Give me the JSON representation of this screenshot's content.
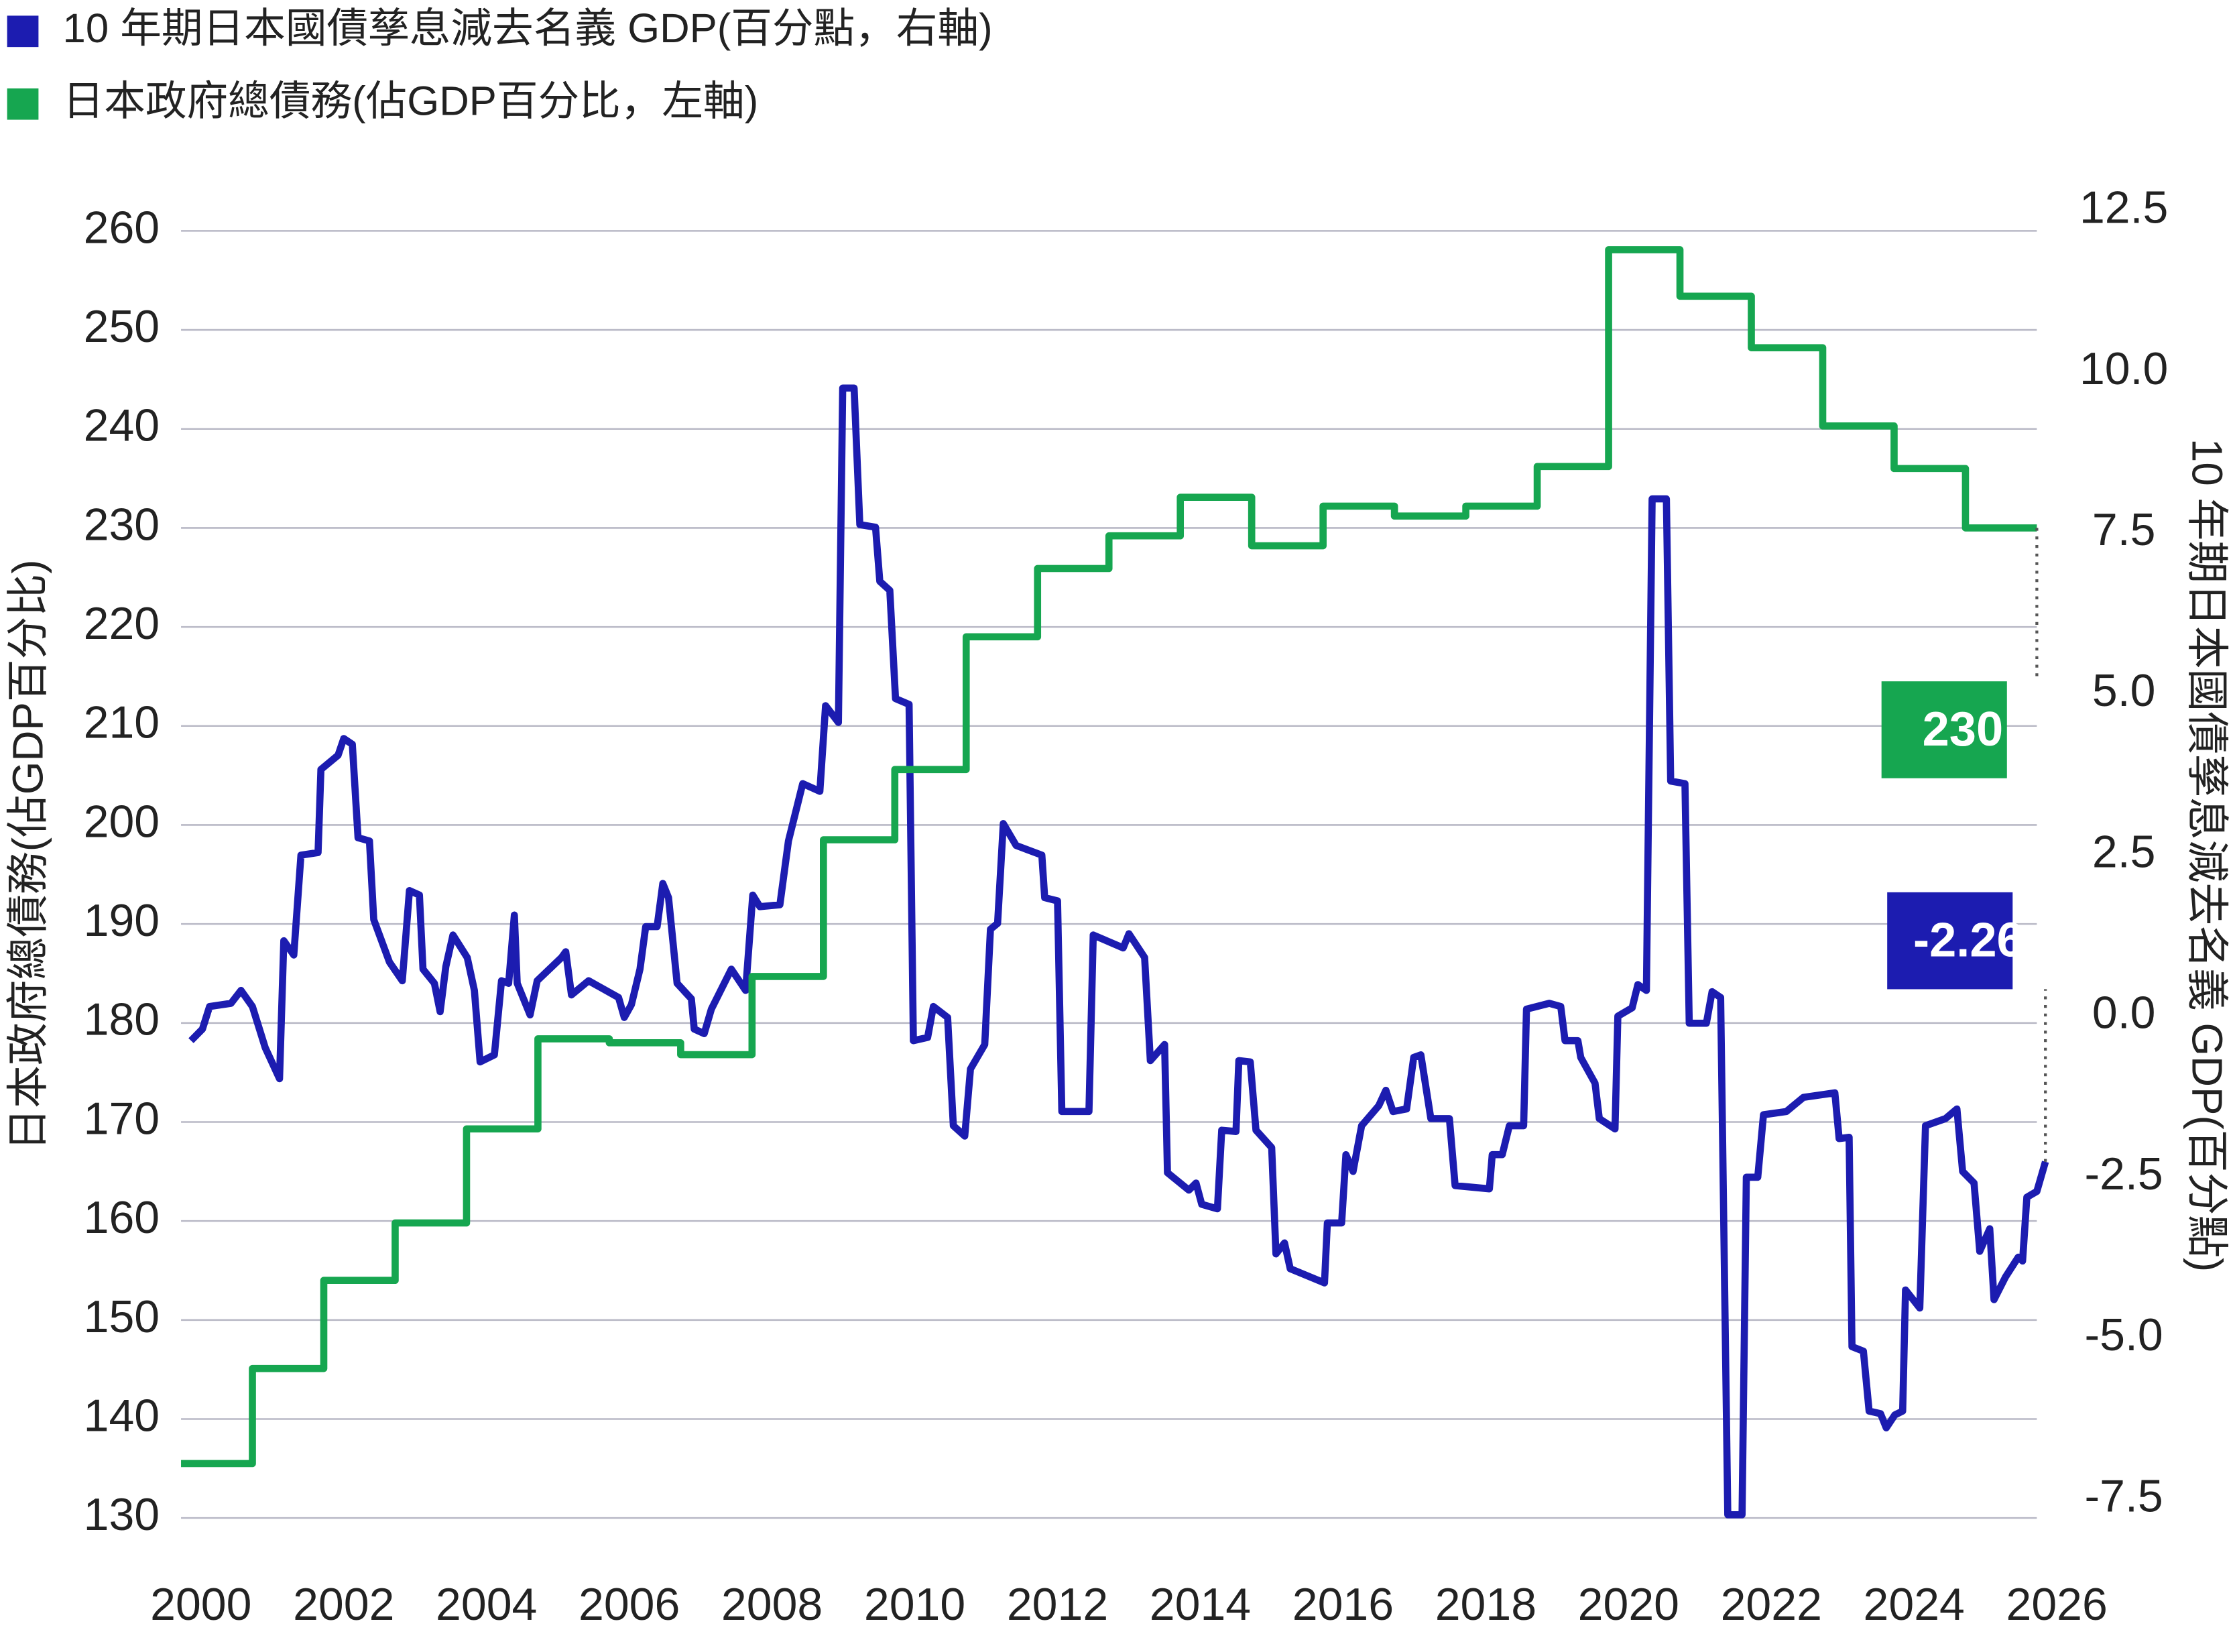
{
  "chart_data": {
    "type": "line",
    "y_label": "日本政府總債務(佔GDP百分比)",
    "y2_label": "10 年期日本國債孳息減去名義 GDP(百分點)",
    "xlim": [
      2000,
      2026.2
    ],
    "xticks": [
      2000,
      2002,
      2004,
      2006,
      2008,
      2010,
      2012,
      2014,
      2016,
      2018,
      2020,
      2022,
      2024,
      2026
    ],
    "ylim": [
      130,
      260
    ],
    "yticks": [
      130,
      140,
      150,
      160,
      170,
      180,
      190,
      200,
      210,
      220,
      230,
      240,
      250,
      260
    ],
    "y2lim": [
      -7.79,
      12.19
    ],
    "y2ticks": [
      -7.5,
      {
        "value": -5,
        "label": "-5.0"
      },
      -2.5,
      {
        "value": 0,
        "label": "0.0"
      },
      2.5,
      {
        "value": 5,
        "label": "5.0"
      },
      7.5,
      {
        "value": 10,
        "label": "10.0"
      },
      12.5
    ],
    "grid": true,
    "legend": "top-left",
    "series": [
      {
        "name": "10 年期日本國債孳息減去名義 GDP(百分點，右軸)",
        "color": "#1c1cb0",
        "axis": "y2",
        "x": [
          2000.14,
          2000.3,
          2000.4,
          2000.7,
          2000.84,
          2001.0,
          2001.18,
          2001.38,
          2001.44,
          2001.58,
          2001.68,
          2001.92,
          2001.96,
          2002.2,
          2002.28,
          2002.4,
          2002.48,
          2002.64,
          2002.7,
          2002.92,
          2003.1,
          2003.2,
          2003.34,
          2003.39,
          2003.55,
          2003.63,
          2003.71,
          2003.81,
          2004.01,
          2004.11,
          2004.19,
          2004.39,
          2004.49,
          2004.59,
          2004.67,
          2004.71,
          2004.89,
          2004.99,
          2005.33,
          2005.39,
          2005.47,
          2005.71,
          2006.13,
          2006.21,
          2006.31,
          2006.43,
          2006.51,
          2006.67,
          2006.75,
          2006.83,
          2006.95,
          2007.15,
          2007.19,
          2007.33,
          2007.43,
          2007.71,
          2007.91,
          2008.01,
          2008.11,
          2008.39,
          2008.51,
          2008.71,
          2008.95,
          2009.03,
          2009.21,
          2009.27,
          2009.43,
          2009.51,
          2009.73,
          2009.79,
          2009.93,
          2010.01,
          2010.2,
          2010.26,
          2010.46,
          2010.54,
          2010.74,
          2010.82,
          2010.98,
          2011.06,
          2011.26,
          2011.34,
          2011.44,
          2011.52,
          2011.7,
          2012.06,
          2012.1,
          2012.28,
          2012.34,
          2012.72,
          2012.78,
          2013.2,
          2013.28,
          2013.5,
          2013.58,
          2013.78,
          2013.82,
          2014.12,
          2014.22,
          2014.3,
          2014.52,
          2014.58,
          2014.78,
          2014.82,
          2014.98,
          2015.06,
          2015.28,
          2015.34,
          2015.46,
          2015.54,
          2016.02,
          2016.06,
          2016.26,
          2016.32,
          2016.42,
          2016.54,
          2016.78,
          2016.88,
          2016.98,
          2017.17,
          2017.27,
          2017.37,
          2017.51,
          2017.77,
          2017.85,
          2018.33,
          2018.37,
          2018.51,
          2018.61,
          2018.81,
          2018.85,
          2019.17,
          2019.33,
          2019.39,
          2019.57,
          2019.61,
          2019.81,
          2019.87,
          2020.09,
          2020.13,
          2020.33,
          2020.41,
          2020.53,
          2020.61,
          2020.81,
          2020.87,
          2021.07,
          2021.13,
          2021.37,
          2021.45,
          2021.57,
          2021.67,
          2021.87,
          2021.93,
          2022.09,
          2022.17,
          2022.49,
          2022.73,
          2023.17,
          2023.23,
          2023.37,
          2023.41,
          2023.57,
          2023.65,
          2023.81,
          2023.89,
          2024.01,
          2024.12,
          2024.16,
          2024.36,
          2024.44,
          2024.72,
          2024.88,
          2024.96,
          2025.12,
          2025.2,
          2025.34,
          2025.4,
          2025.56,
          2025.74,
          2025.8,
          2025.86,
          2026.0,
          2026.12
        ],
        "values": [
          -0.38,
          -0.2,
          0.15,
          0.2,
          0.4,
          0.15,
          -0.49,
          -0.97,
          1.17,
          0.95,
          2.5,
          2.54,
          3.83,
          4.05,
          4.31,
          4.22,
          2.77,
          2.72,
          1.5,
          0.84,
          0.55,
          1.95,
          1.88,
          0.73,
          0.51,
          0.07,
          0.77,
          1.26,
          0.91,
          0.4,
          -0.71,
          -0.6,
          0.55,
          0.51,
          1.57,
          0.51,
          0.02,
          0.55,
          0.91,
          1.0,
          0.33,
          0.55,
          0.29,
          -0.02,
          0.18,
          0.73,
          1.39,
          1.39,
          2.06,
          1.84,
          0.51,
          0.27,
          -0.2,
          -0.27,
          0.11,
          0.73,
          0.4,
          1.88,
          1.7,
          1.73,
          2.72,
          3.61,
          3.49,
          4.82,
          4.56,
          9.75,
          9.75,
          7.63,
          7.59,
          6.75,
          6.61,
          4.93,
          4.84,
          -0.38,
          -0.33,
          0.15,
          -0.02,
          -1.7,
          -1.86,
          -0.82,
          -0.44,
          1.35,
          1.44,
          2.99,
          2.65,
          2.5,
          1.84,
          1.79,
          -1.48,
          -1.48,
          1.26,
          1.06,
          1.28,
          0.91,
          -0.69,
          -0.44,
          -2.43,
          -2.7,
          -2.59,
          -2.92,
          -2.99,
          -1.77,
          -1.79,
          -0.69,
          -0.71,
          -1.77,
          -2.04,
          -3.69,
          -3.52,
          -3.92,
          -4.14,
          -3.21,
          -3.21,
          -2.15,
          -2.41,
          -1.7,
          -1.39,
          -1.15,
          -1.48,
          -1.44,
          -0.64,
          -0.6,
          -1.59,
          -1.59,
          -2.63,
          -2.68,
          -2.15,
          -2.15,
          -1.7,
          -1.7,
          0.11,
          0.2,
          0.15,
          -0.38,
          -0.38,
          -0.64,
          -1.04,
          -1.59,
          -1.75,
          0.0,
          0.13,
          0.49,
          0.4,
          8.03,
          8.03,
          3.65,
          3.61,
          -0.11,
          -0.11,
          0.38,
          0.29,
          -7.74,
          -7.74,
          -2.5,
          -2.5,
          -1.53,
          -1.48,
          -1.26,
          -1.19,
          -1.9,
          -1.88,
          -5.13,
          -5.2,
          -6.13,
          -6.17,
          -6.39,
          -6.19,
          -6.13,
          -4.25,
          -4.53,
          -1.7,
          -1.59,
          -1.44,
          -2.41,
          -2.59,
          -3.65,
          -3.3,
          -4.4,
          -4.05,
          -3.74,
          -3.8,
          -2.81,
          -2.72,
          -2.26
        ]
      },
      {
        "name": "日本政府總債務(佔GDP百分比，左軸)",
        "color": "#16a650",
        "axis": "y",
        "step": "post",
        "x": [
          2000,
          2001,
          2002,
          2003,
          2004,
          2005,
          2006,
          2007,
          2008,
          2009,
          2010,
          2011,
          2012,
          2013,
          2014,
          2015,
          2016,
          2017,
          2018,
          2019,
          2020,
          2021,
          2022,
          2023,
          2024,
          2025,
          2026
        ],
        "values": [
          135.5,
          145.1,
          154.0,
          159.8,
          169.3,
          178.4,
          178.0,
          176.8,
          184.7,
          198.5,
          205.6,
          219.0,
          225.9,
          229.2,
          233.1,
          228.2,
          232.2,
          231.2,
          232.2,
          236.2,
          258.1,
          253.4,
          248.2,
          240.3,
          236.0,
          230,
          230
        ]
      }
    ]
  }
}
